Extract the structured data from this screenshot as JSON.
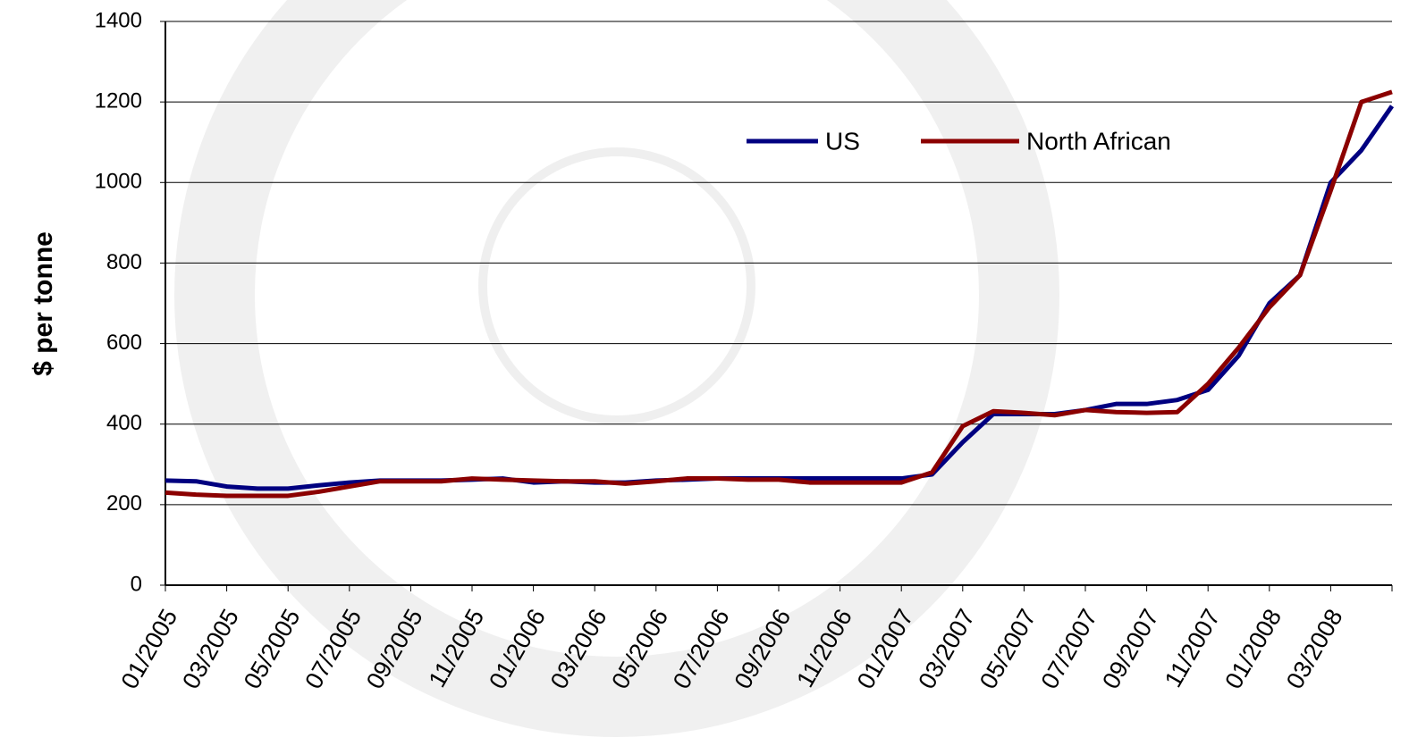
{
  "chart_data": {
    "type": "line",
    "y_label": "$ per tonne",
    "categories": [
      "01/2005",
      null,
      "03/2005",
      null,
      "05/2005",
      null,
      "07/2005",
      null,
      "09/2005",
      null,
      "11/2005",
      null,
      "01/2006",
      null,
      "03/2006",
      null,
      "05/2006",
      null,
      "07/2006",
      null,
      "09/2006",
      null,
      "11/2006",
      null,
      "01/2007",
      null,
      "03/2007",
      null,
      "05/2007",
      null,
      "07/2007",
      null,
      "09/2007",
      null,
      "11/2007",
      null,
      "01/2008",
      null,
      "03/2008",
      null,
      null
    ],
    "series": [
      {
        "name": "US",
        "color": "#000080",
        "values": [
          260,
          258,
          245,
          240,
          240,
          248,
          255,
          260,
          260,
          260,
          262,
          265,
          255,
          258,
          255,
          255,
          260,
          262,
          265,
          265,
          265,
          265,
          265,
          265,
          265,
          275,
          355,
          425,
          425,
          425,
          435,
          450,
          450,
          460,
          485,
          570,
          700,
          770,
          1000,
          1080,
          1190
        ]
      },
      {
        "name": "North African",
        "color": "#8b0000",
        "values": [
          230,
          225,
          222,
          222,
          222,
          232,
          245,
          258,
          258,
          258,
          265,
          262,
          260,
          258,
          258,
          252,
          258,
          265,
          265,
          262,
          262,
          255,
          255,
          255,
          255,
          280,
          395,
          432,
          428,
          422,
          435,
          430,
          428,
          430,
          500,
          590,
          690,
          770,
          980,
          1200,
          1225
        ]
      }
    ],
    "ylim": [
      0,
      1400
    ],
    "yticks": [
      0,
      200,
      400,
      600,
      800,
      1000,
      1200,
      1400
    ],
    "grid": true
  }
}
